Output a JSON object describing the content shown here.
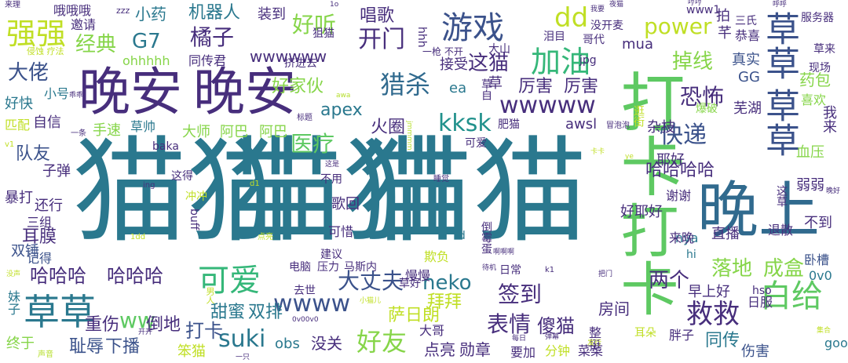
{
  "palette": {
    "teal": "#2a788e",
    "dteal": "#306a8e",
    "purple": "#443983",
    "dpurple": "#472e7c",
    "blue": "#3b528b",
    "green": "#5ec962",
    "lgreen": "#86d549",
    "yellow": "#c0df25",
    "aqua": "#21918c",
    "mint": "#35b779",
    "faint": "#b5de2b"
  },
  "words": {
    "w1": "猫猫",
    "w2": "猫猫",
    "w3": "猫猫",
    "w4": "晚安",
    "w5": "晚安",
    "w6": "晚上",
    "w7": "打卡",
    "w8": "打卡",
    "w9": "草草",
    "w10": "草草",
    "w11": "草草",
    "w12": "加油",
    "w13": "游戏",
    "w14": "猎杀",
    "w15": "开门",
    "w16": "好听",
    "w17": "dd",
    "w18": "power",
    "w19": "强强",
    "w20": "kksk",
    "w21": "wwwww",
    "w22": "wwww",
    "w23": "wwwwww",
    "w24": "可爱",
    "w25": "救救",
    "w26": "白给",
    "w27": "suki",
    "w28": "好友",
    "w29": "大丈夫",
    "w30": "快递",
    "w31": "恐怖",
    "w32": "医疗",
    "w33": "哈哈哈",
    "w34": "哈哈哈",
    "w35": "哈哈哈哈",
    "w36": "表情",
    "w37": "签到",
    "w38": "neko",
    "w39": "apex",
    "w40": "橘子",
    "w41": "经典",
    "w42": "G7",
    "w43": "大佬",
    "w44": "掉线",
    "w45": "落地",
    "w46": "成盒",
    "w47": "厉害",
    "w48": "厉害",
    "w49": "这猫",
    "w50": "机器人",
    "w51": "小药",
    "w52": "装到",
    "w53": "唱歌",
    "w54": "火圈",
    "w55": "好家伙",
    "w56": "队友",
    "w57": "两个",
    "w58": "ww",
    "w59": "打卡",
    "w60": "傻猫",
    "w61": "拜拜",
    "w62": "萨日朗",
    "w63": "点亮",
    "w64": "勋章",
    "w65": "没关",
    "w66": "obs",
    "w67": "下播",
    "w68": "耻辱",
    "w69": "笨猫",
    "w70": "甜蜜",
    "w71": "双排",
    "w72": "重伤",
    "w73": "倒地",
    "w74": "同传",
    "w75": "伤害",
    "w76": "房间",
    "w77": "早上好",
    "w78": "直播",
    "w79": "好耶好",
    "w80": "谢谢",
    "w81": "耶好",
    "w82": "真实",
    "w83": "GG",
    "w84": "芜湖",
    "w85": "药包",
    "w86": "喜欢",
    "w87": "我来",
    "w88": "血压",
    "w89": "弱弱",
    "w90": "不到",
    "w91": "退散",
    "w92": "卧槽",
    "w93": "0v0",
    "w94": "日服",
    "w95": "hso",
    "w96": "nya",
    "w97": "来晚",
    "w98": "hi",
    "w99": "good",
    "w100": "胖子",
    "w101": "耳朵",
    "w102": "整挺",
    "w103": "大哥",
    "w104": "要加",
    "w105": "分钟",
    "w106": "菜菜",
    "w107": "声音",
    "w108": "终于",
    "w109": "妹子",
    "w110": "双锤",
    "w111": "记得",
    "w112": "三组",
    "w113": "暴打",
    "w114": "还行",
    "w115": "子弹",
    "w116": "耳膜",
    "w117": "手速",
    "w118": "自信",
    "w119": "匹配",
    "w120": "好快",
    "w121": "小号",
    "w122": "邀请",
    "w123": "哦哦哦",
    "w124": "ohhhhh",
    "w125": "同传君",
    "w126": "大师",
    "w127": "阿巴",
    "w128": "阿巴",
    "w129": "草帅",
    "w130": "baka",
    "w131": "这得",
    "w132": "冲冲",
    "w133": "歌回",
    "w134": "可惜",
    "w135": "不用",
    "w136": "建议",
    "w137": "电脑",
    "w138": "压力",
    "w139": "马斯内",
    "w140": "慢慢",
    "w141": "欺负",
    "w142": "日常",
    "w143": "去世",
    "w144": "草好",
    "w145": "buff",
    "w146": "awsl",
    "w147": "杂技",
    "w148": "爆破",
    "w149": "逛街",
    "w150": "可爱",
    "w151": "肥猫",
    "w152": "ea",
    "w153": "接受",
    "w154": "大山",
    "w155": "没开麦",
    "w156": "哥代",
    "w157": "泪目",
    "w158": "三氏",
    "w159": "恭喜",
    "w160": "服务器",
    "w161": "草来",
    "w162": "现场",
    "w163": "mua",
    "w164": "jpg",
    "w165": "www1",
    "w166": "hhh",
    "w167": "挤进去",
    "w168": "狙猫",
    "w169": "草自",
    "w170": "id",
    "w171": "倒霉蛋",
    "w172": "zzz",
    "w173": "1o",
    "w174": "侵蚀 疗法",
    "w175": "一枪 不开",
    "w176": "乖乖",
    "w177": "标题",
    "w178": "一条",
    "w179": "冒泡泡",
    "w180": "v1",
    "w181": "ing",
    "w182": "d1",
    "w183": "1dd",
    "w184": "点亮",
    "w185": "这是",
    "w186": "睡觉",
    "w187": "卡卡",
    "w188": "ye",
    "w189": "啊啊啊",
    "w190": "待机",
    "w191": "k1",
    "w192": "把门",
    "w193": "男人",
    "w194": "小猫儿",
    "w195": "0v00v0",
    "w196": "弹幕",
    "w197": "开开",
    "w198": "一只",
    "w199": "每日",
    "w200": "集合",
    "w201": "来理",
    "w202": "呼呼",
    "w203": "哼哼",
    "w204": "我要",
    "w205": "夜猫",
    "w206": "没声",
    "w207": "awa",
    "w208": "晚好",
    "w209": "发行",
    "w210": "jmmmm",
    "w211": "这草",
    "w212": "拍",
    "w213": "芊",
    "w214": "草"
  }
}
